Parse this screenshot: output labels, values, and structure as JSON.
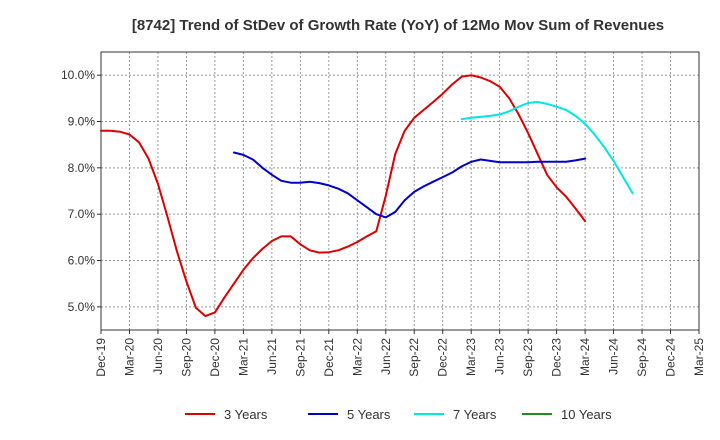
{
  "chart_data": {
    "type": "line",
    "title": "[8742]  Trend of StDev of Growth Rate (YoY) of 12Mo Mov Sum of Revenues",
    "xlabel": "",
    "ylabel": "",
    "ylim": [
      4.5,
      10.5
    ],
    "y_ticks": [
      5.0,
      6.0,
      7.0,
      8.0,
      9.0,
      10.0
    ],
    "y_tick_labels": [
      "5.0%",
      "6.0%",
      "7.0%",
      "8.0%",
      "9.0%",
      "10.0%"
    ],
    "x_start": "Dec-19",
    "x_tick_labels": [
      "Dec-19",
      "Mar-20",
      "Jun-20",
      "Sep-20",
      "Dec-20",
      "Mar-21",
      "Jun-21",
      "Sep-21",
      "Dec-21",
      "Mar-22",
      "Jun-22",
      "Sep-22",
      "Dec-22",
      "Mar-23",
      "Jun-23",
      "Sep-23",
      "Dec-23",
      "Mar-24",
      "Jun-24",
      "Sep-24",
      "Dec-24",
      "Mar-25"
    ],
    "grid": true,
    "legend_position": "bottom",
    "series": [
      {
        "name": "3 Years",
        "color": "#dd0000",
        "start_index": 0,
        "values": [
          8.8,
          8.8,
          8.78,
          8.72,
          8.55,
          8.2,
          7.65,
          6.95,
          6.2,
          5.55,
          4.98,
          4.8,
          4.88,
          5.2,
          5.5,
          5.8,
          6.05,
          6.25,
          6.42,
          6.52,
          6.52,
          6.35,
          6.22,
          6.17,
          6.18,
          6.22,
          6.3,
          6.4,
          6.52,
          6.63,
          7.4,
          8.3,
          8.8,
          9.08,
          9.25,
          9.42,
          9.6,
          9.8,
          9.97,
          10.0,
          9.95,
          9.87,
          9.75,
          9.5,
          9.15,
          8.75,
          8.3,
          7.85,
          7.58,
          7.38,
          7.12,
          6.85
        ]
      },
      {
        "name": "5 Years",
        "color": "#0000cc",
        "start_index": 14,
        "values": [
          8.33,
          8.28,
          8.18,
          8.0,
          7.85,
          7.72,
          7.68,
          7.68,
          7.7,
          7.67,
          7.62,
          7.55,
          7.45,
          7.3,
          7.15,
          7.0,
          6.93,
          7.05,
          7.3,
          7.48,
          7.6,
          7.7,
          7.8,
          7.9,
          8.03,
          8.13,
          8.18,
          8.15,
          8.12,
          8.12,
          8.12,
          8.12,
          8.13,
          8.13,
          8.13,
          8.13,
          8.16,
          8.2
        ]
      },
      {
        "name": "7 Years",
        "color": "#00e5e5",
        "start_index": 38,
        "values": [
          9.05,
          9.08,
          9.1,
          9.12,
          9.15,
          9.22,
          9.32,
          9.4,
          9.42,
          9.38,
          9.32,
          9.25,
          9.12,
          8.95,
          8.72,
          8.45,
          8.15,
          7.8,
          7.45
        ]
      },
      {
        "name": "10 Years",
        "color": "#228b22",
        "start_index": 0,
        "values": []
      }
    ]
  }
}
